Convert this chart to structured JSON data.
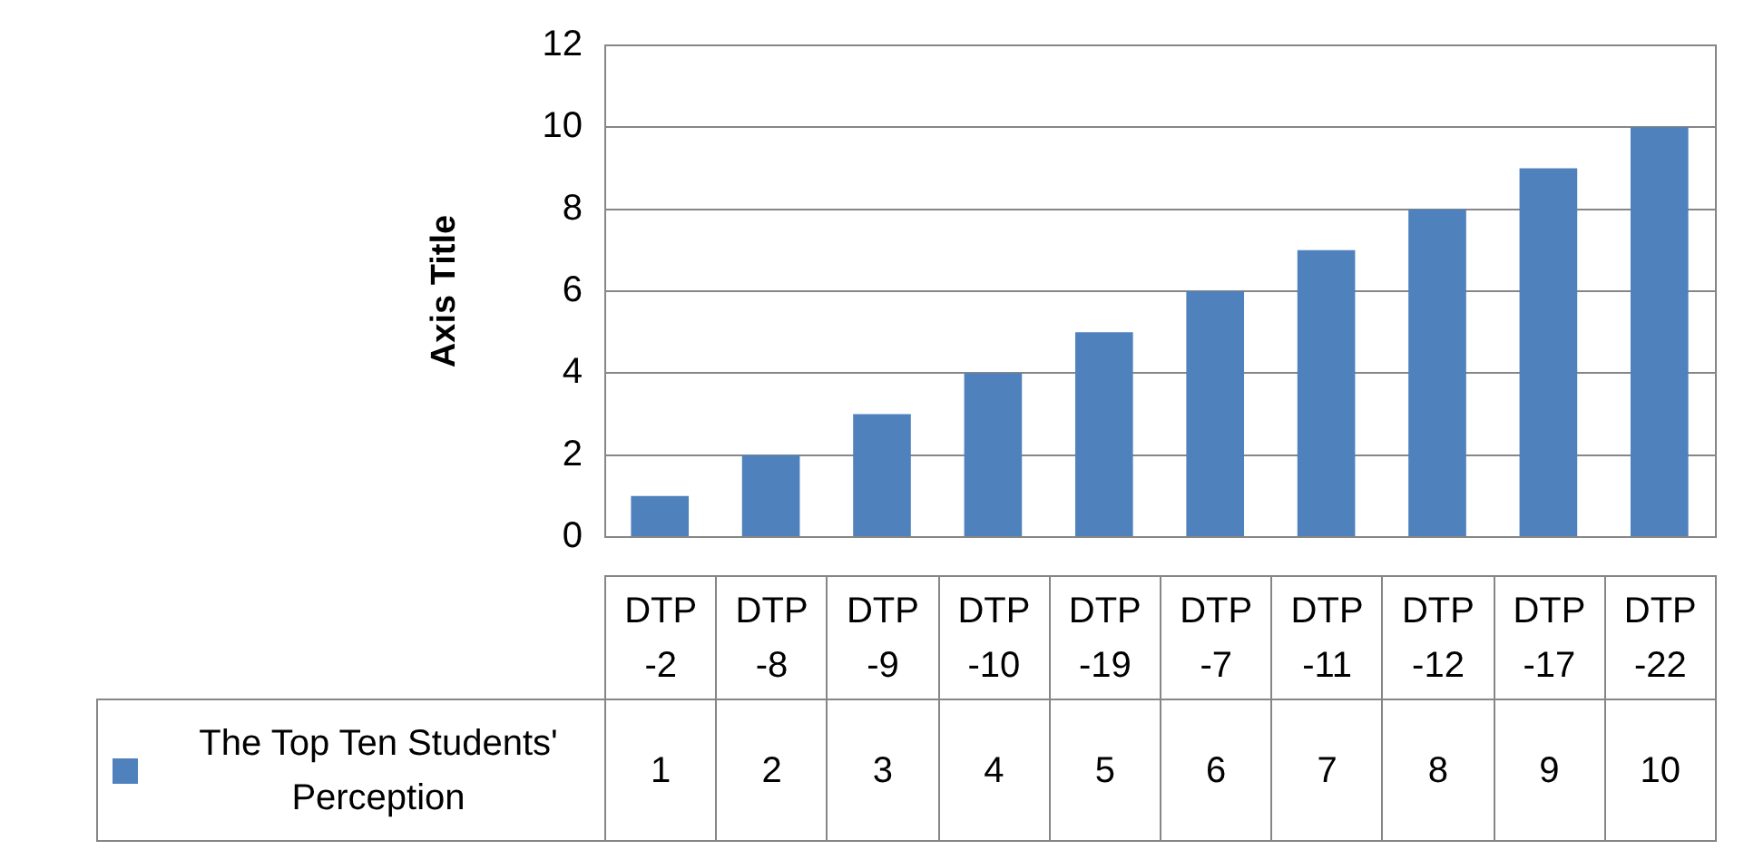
{
  "chart_data": {
    "type": "bar",
    "ylabel": "Axis Title",
    "categories": [
      "DTP -2",
      "DTP -8",
      "DTP -9",
      "DTP -10",
      "DTP -19",
      "DTP -7",
      "DTP -11",
      "DTP -12",
      "DTP -17",
      "DTP -22"
    ],
    "series": [
      {
        "name": "The Top Ten Students' Perception",
        "color": "#4f81bd",
        "values": [
          1,
          2,
          3,
          4,
          5,
          6,
          7,
          8,
          9,
          10
        ]
      }
    ],
    "ylim": [
      0,
      12
    ],
    "yticks": [
      0,
      2,
      4,
      6,
      8,
      10,
      12
    ],
    "grid": "y",
    "legend": "bottom",
    "data_labels": true
  }
}
